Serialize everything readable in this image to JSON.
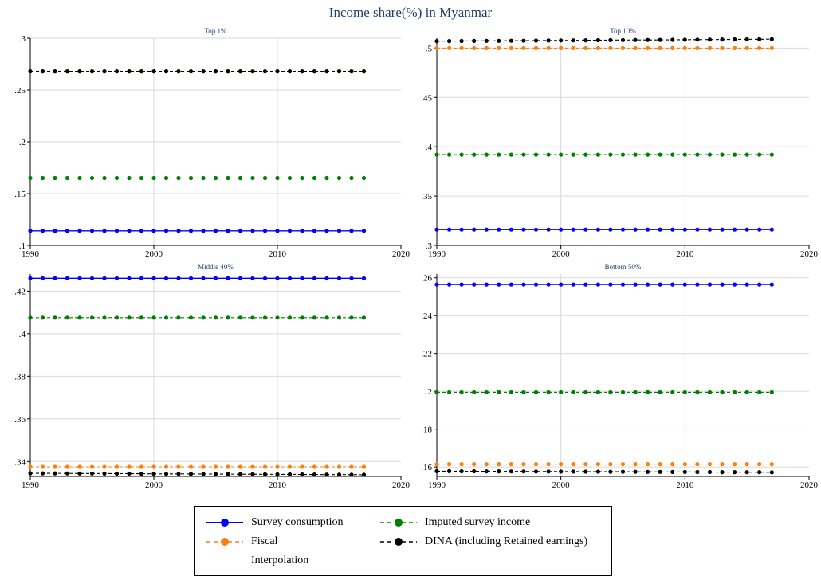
{
  "title": "Income share(%) in Myanmar",
  "legend": {
    "items": [
      {
        "label": "Survey consumption",
        "color": "#0000ff",
        "style": "solid"
      },
      {
        "label": "Imputed survey income",
        "color": "#008000",
        "style": "dash"
      },
      {
        "label": "Fiscal",
        "color": "#ff7f0e",
        "style": "dash"
      },
      {
        "label": "DINA (including Retained earnings)",
        "color": "#000000",
        "style": "dash"
      },
      {
        "label": "Interpolation",
        "color": "",
        "style": "none"
      }
    ]
  },
  "colors": {
    "survey_consumption": "#0000ff",
    "imputed_survey_income": "#008000",
    "fiscal": "#ff7f0e",
    "dina": "#000000",
    "grid": "#d9d9d9",
    "title": "#1f3e6e"
  },
  "chart_data": [
    {
      "type": "line",
      "title": "Top 1%",
      "xlim": [
        1990,
        2020
      ],
      "ylim": [
        0.1,
        0.3
      ],
      "xticks": [
        "1990",
        "2000",
        "2010",
        "2020"
      ],
      "yticks": [
        ".1",
        ".15",
        ".2",
        ".25",
        ".3"
      ],
      "x": [
        1990,
        2017
      ],
      "grid": true,
      "series": [
        {
          "name": "Fiscal",
          "color": "#ff7f0e",
          "y_start": 0.268,
          "y_end": 0.268
        },
        {
          "name": "DINA (including Retained earnings)",
          "color": "#000000",
          "y_start": 0.268,
          "y_end": 0.268
        },
        {
          "name": "Imputed survey income",
          "color": "#008000",
          "y_start": 0.165,
          "y_end": 0.165
        },
        {
          "name": "Survey consumption",
          "color": "#0000ff",
          "y_start": 0.114,
          "y_end": 0.114
        }
      ]
    },
    {
      "type": "line",
      "title": "Top 10%",
      "xlim": [
        1990,
        2020
      ],
      "ylim": [
        0.3,
        0.51
      ],
      "xticks": [
        "1990",
        "2000",
        "2010",
        "2020"
      ],
      "yticks": [
        ".3",
        ".35",
        ".4",
        ".45",
        ".5"
      ],
      "x": [
        1990,
        2017
      ],
      "grid": true,
      "series": [
        {
          "name": "DINA (including Retained earnings)",
          "color": "#000000",
          "y_start": 0.507,
          "y_end": 0.509
        },
        {
          "name": "Fiscal",
          "color": "#ff7f0e",
          "y_start": 0.5,
          "y_end": 0.5
        },
        {
          "name": "Imputed survey income",
          "color": "#008000",
          "y_start": 0.392,
          "y_end": 0.392
        },
        {
          "name": "Survey consumption",
          "color": "#0000ff",
          "y_start": 0.316,
          "y_end": 0.316
        }
      ]
    },
    {
      "type": "line",
      "title": "Middle 40%",
      "xlim": [
        1990,
        2020
      ],
      "ylim": [
        0.333,
        0.428
      ],
      "xticks": [
        "1990",
        "2000",
        "2010",
        "2020"
      ],
      "yticks": [
        ".34",
        ".36",
        ".38",
        ".4",
        ".42"
      ],
      "x": [
        1990,
        2017
      ],
      "grid": true,
      "series": [
        {
          "name": "Survey consumption",
          "color": "#0000ff",
          "y_start": 0.426,
          "y_end": 0.426
        },
        {
          "name": "Imputed survey income",
          "color": "#008000",
          "y_start": 0.4075,
          "y_end": 0.4075
        },
        {
          "name": "Fiscal",
          "color": "#ff7f0e",
          "y_start": 0.3375,
          "y_end": 0.3375
        },
        {
          "name": "DINA (including Retained earnings)",
          "color": "#000000",
          "y_start": 0.3345,
          "y_end": 0.3338
        }
      ]
    },
    {
      "type": "line",
      "title": "Bottom 50%",
      "xlim": [
        1990,
        2020
      ],
      "ylim": [
        0.155,
        0.262
      ],
      "xticks": [
        "1990",
        "2000",
        "2010",
        "2020"
      ],
      "yticks": [
        ".16",
        ".18",
        ".2",
        ".22",
        ".24",
        ".26"
      ],
      "x": [
        1990,
        2017
      ],
      "grid": true,
      "series": [
        {
          "name": "Survey consumption",
          "color": "#0000ff",
          "y_start": 0.2565,
          "y_end": 0.2565
        },
        {
          "name": "Imputed survey income",
          "color": "#008000",
          "y_start": 0.1995,
          "y_end": 0.1995
        },
        {
          "name": "Fiscal",
          "color": "#ff7f0e",
          "y_start": 0.1615,
          "y_end": 0.1615
        },
        {
          "name": "DINA (including Retained earnings)",
          "color": "#000000",
          "y_start": 0.1578,
          "y_end": 0.1572
        }
      ]
    }
  ]
}
